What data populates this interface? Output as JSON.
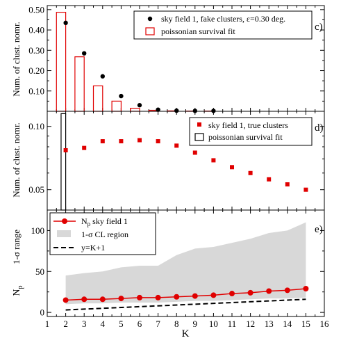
{
  "chart_data": [
    {
      "type": "scatter",
      "panel_label": "c)",
      "ylabel": "Num. of clust. nomr.",
      "ylim": [
        0,
        0.52
      ],
      "yticks": [
        "0.10",
        "0.20",
        "0.30",
        "0.40",
        "0.50"
      ],
      "legend_position": "top-right",
      "series": [
        {
          "name": "sky field 1, fake clusters, ε=0.30 deg.",
          "kind": "points",
          "color": "#000000",
          "x": [
            2,
            3,
            4,
            5,
            6,
            7,
            8,
            9,
            10
          ],
          "y": [
            0.435,
            0.285,
            0.172,
            0.075,
            0.03,
            0.008,
            0.003,
            0.002,
            0.002
          ]
        },
        {
          "name": "poissonian survival fit",
          "kind": "bars",
          "color": "#e00000",
          "x": [
            2,
            3,
            4,
            5,
            6,
            7,
            8,
            9,
            10
          ],
          "y": [
            0.487,
            0.268,
            0.125,
            0.05,
            0.015,
            0.005,
            0.002,
            0.001,
            0.001
          ]
        }
      ]
    },
    {
      "type": "scatter",
      "panel_label": "d)",
      "ylabel": "Num. of clust. nomr.",
      "yscale": "log",
      "ylim": [
        0.04,
        0.118
      ],
      "yticks": [
        "0.05",
        "0.10"
      ],
      "legend_position": "top-right",
      "series": [
        {
          "name": "sky field 1, true clusters",
          "kind": "points",
          "color": "#e00000",
          "x": [
            2,
            3,
            4,
            5,
            6,
            7,
            8,
            9,
            10,
            11,
            12,
            13,
            14,
            15
          ],
          "y": [
            0.077,
            0.079,
            0.085,
            0.085,
            0.086,
            0.085,
            0.081,
            0.075,
            0.069,
            0.064,
            0.06,
            0.056,
            0.053,
            0.05
          ]
        },
        {
          "name": "poissonian survival fit",
          "kind": "bars",
          "color": "#000000",
          "x": [
            2
          ],
          "y": [
            0.115
          ]
        }
      ]
    },
    {
      "type": "line",
      "panel_label": "e)",
      "xlabel": "K",
      "ylabel_top": "1-σ range",
      "ylabel_main": "N",
      "ylabel_sub": "p",
      "xlim": [
        1,
        16
      ],
      "xticks": [
        "1",
        "2",
        "3",
        "4",
        "5",
        "6",
        "7",
        "8",
        "9",
        "10",
        "11",
        "12",
        "13",
        "14",
        "15",
        "16"
      ],
      "ylim": [
        -5,
        125
      ],
      "yticks": [
        "0",
        "50",
        "100"
      ],
      "legend_position": "top-left",
      "series": [
        {
          "name_main": "N",
          "name_sub": "p",
          "name_rest": " sky field 1",
          "kind": "line-markers",
          "color": "#e00000",
          "x": [
            2,
            3,
            4,
            5,
            6,
            7,
            8,
            9,
            10,
            11,
            12,
            13,
            14,
            15
          ],
          "y": [
            15,
            16,
            16,
            17,
            18,
            18,
            19,
            20,
            21,
            23,
            24,
            26,
            27,
            29
          ]
        },
        {
          "name": "1-σ CL region",
          "kind": "band",
          "color": "#d8d8d8",
          "x": [
            2,
            3,
            4,
            5,
            6,
            7,
            8,
            9,
            10,
            11,
            12,
            13,
            14,
            15
          ],
          "low": [
            10,
            11,
            11,
            12,
            12,
            12,
            13,
            14,
            14,
            15,
            16,
            17,
            17,
            18
          ],
          "high": [
            45,
            48,
            50,
            55,
            57,
            57,
            70,
            78,
            80,
            85,
            90,
            97,
            100,
            110
          ]
        },
        {
          "name": "y=K+1",
          "kind": "dashed-line",
          "color": "#000000",
          "x": [
            2,
            15
          ],
          "y": [
            3,
            16
          ]
        }
      ]
    }
  ]
}
